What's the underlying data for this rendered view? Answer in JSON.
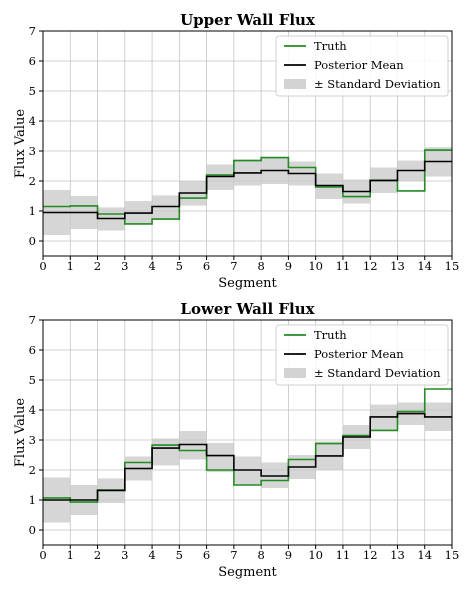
{
  "chart_data": [
    {
      "type": "line",
      "title": "Upper Wall Flux",
      "xlabel": "Segment",
      "ylabel": "Flux Value",
      "xlim": [
        0,
        15
      ],
      "ylim": [
        -0.5,
        7
      ],
      "x_ticks": [
        "0",
        "1",
        "2",
        "3",
        "4",
        "5",
        "6",
        "7",
        "8",
        "9",
        "10",
        "11",
        "12",
        "13",
        "14",
        "15"
      ],
      "y_ticks": [
        "0",
        "1",
        "2",
        "3",
        "4",
        "5",
        "6",
        "7"
      ],
      "grid": true,
      "legend_position": "top-right",
      "segments": [
        0,
        1,
        2,
        3,
        4,
        5,
        6,
        7,
        8,
        9,
        10,
        11,
        12,
        13,
        14
      ],
      "series": [
        {
          "name": "Truth",
          "color": "#228b22",
          "style": "step",
          "values": [
            1.15,
            1.17,
            0.9,
            0.57,
            0.73,
            1.43,
            2.2,
            2.68,
            2.78,
            2.45,
            1.8,
            1.48,
            2.02,
            1.67,
            3.03
          ]
        },
        {
          "name": "Posterior Mean",
          "color": "#000000",
          "style": "step",
          "values": [
            0.95,
            0.95,
            0.75,
            0.93,
            1.15,
            1.6,
            2.15,
            2.27,
            2.35,
            2.25,
            1.85,
            1.65,
            2.02,
            2.35,
            2.65
          ]
        },
        {
          "name": "± Standard Deviation",
          "color": "#c8c8c8",
          "style": "band",
          "lower": [
            0.2,
            0.4,
            0.35,
            0.55,
            0.75,
            1.18,
            1.7,
            1.85,
            1.9,
            1.85,
            1.4,
            1.25,
            1.6,
            2.0,
            2.15
          ],
          "upper": [
            1.7,
            1.5,
            1.12,
            1.33,
            1.52,
            2.0,
            2.55,
            2.72,
            2.8,
            2.65,
            2.25,
            2.05,
            2.45,
            2.68,
            3.13
          ]
        }
      ]
    },
    {
      "type": "line",
      "title": "Lower Wall Flux",
      "xlabel": "Segment",
      "ylabel": "Flux Value",
      "xlim": [
        0,
        15
      ],
      "ylim": [
        -0.5,
        7
      ],
      "x_ticks": [
        "0",
        "1",
        "2",
        "3",
        "4",
        "5",
        "6",
        "7",
        "8",
        "9",
        "10",
        "11",
        "12",
        "13",
        "14",
        "15"
      ],
      "y_ticks": [
        "0",
        "1",
        "2",
        "3",
        "4",
        "5",
        "6",
        "7"
      ],
      "grid": true,
      "legend_position": "top-right",
      "segments": [
        0,
        1,
        2,
        3,
        4,
        5,
        6,
        7,
        8,
        9,
        10,
        11,
        12,
        13,
        14
      ],
      "series": [
        {
          "name": "Truth",
          "color": "#228b22",
          "style": "step",
          "values": [
            1.07,
            0.93,
            1.33,
            2.25,
            2.83,
            2.65,
            2.0,
            1.5,
            1.65,
            2.35,
            2.88,
            3.15,
            3.32,
            3.95,
            4.7
          ]
        },
        {
          "name": "Posterior Mean",
          "color": "#000000",
          "style": "step",
          "values": [
            1.0,
            1.0,
            1.32,
            2.05,
            2.73,
            2.85,
            2.48,
            2.0,
            1.8,
            2.1,
            2.47,
            3.1,
            3.77,
            3.88,
            3.77
          ]
        },
        {
          "name": "± Standard Deviation",
          "color": "#c8c8c8",
          "style": "band",
          "lower": [
            0.25,
            0.5,
            0.9,
            1.65,
            2.15,
            2.35,
            1.93,
            1.52,
            1.4,
            1.7,
            2.0,
            2.7,
            3.33,
            3.5,
            3.3
          ]
        },
        {
          "name": "",
          "color": "#c8c8c8",
          "style": "band-upper",
          "upper": [
            1.75,
            1.5,
            1.72,
            2.45,
            3.05,
            3.3,
            2.9,
            2.45,
            2.25,
            2.5,
            2.95,
            3.5,
            4.18,
            4.25,
            4.25
          ]
        }
      ]
    }
  ]
}
